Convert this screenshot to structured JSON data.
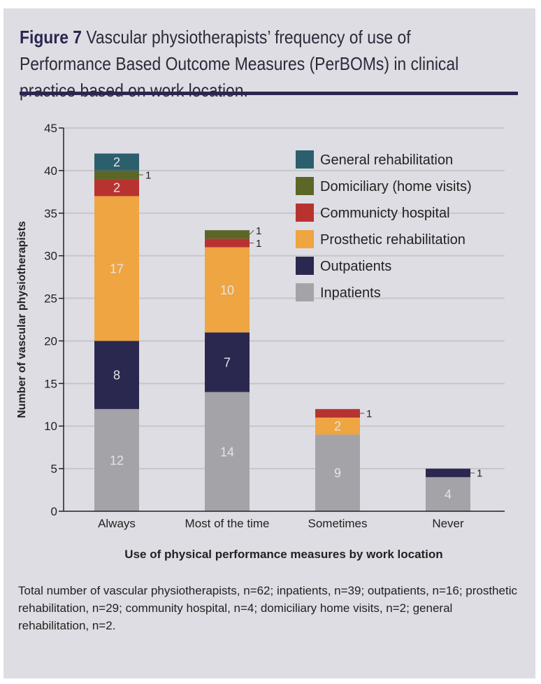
{
  "figure": {
    "label": "Figure 7",
    "title_line1": " Vascular physiotherapists’ frequency of use of",
    "title_line2": "Performance Based Outcome Measures (PerBOMs) in clinical",
    "title_line3": "practice based on work location.",
    "note": "Total number of vascular physiotherapists, n=62; inpatients, n=39; outpatients, n=16; prosthetic rehabilitation, n=29; community hospital, n=4; domiciliary home visits, n=2; general rehabilitation, n=2."
  },
  "chart_data": {
    "type": "bar",
    "stacked": true,
    "categories": [
      "Always",
      "Most of the time",
      "Sometimes",
      "Never"
    ],
    "series": [
      {
        "name": "Inpatients",
        "color": "#a3a3a8",
        "values": [
          12,
          14,
          9,
          4
        ]
      },
      {
        "name": "Outpatients",
        "color": "#2b2850",
        "values": [
          8,
          7,
          0,
          1
        ]
      },
      {
        "name": "Prosthetic rehabilitation",
        "color": "#eea542",
        "values": [
          17,
          10,
          2,
          0
        ]
      },
      {
        "name": "Communicty hospital",
        "color": "#b83330",
        "values": [
          2,
          1,
          1,
          0
        ]
      },
      {
        "name": "Domiciliary (home visits)",
        "color": "#5c6727",
        "values": [
          1,
          1,
          0,
          0
        ]
      },
      {
        "name": "General rehabilitation",
        "color": "#2c5f6e",
        "values": [
          2,
          0,
          0,
          0
        ]
      }
    ],
    "xlabel": "Use of physical performance measures by work location",
    "ylabel": "Number of vascular physiotherapists",
    "ylim": [
      0,
      45
    ],
    "yticks": [
      0,
      5,
      10,
      15,
      20,
      25,
      30,
      35,
      40,
      45
    ],
    "grid": true,
    "legend_position": "top-right"
  }
}
